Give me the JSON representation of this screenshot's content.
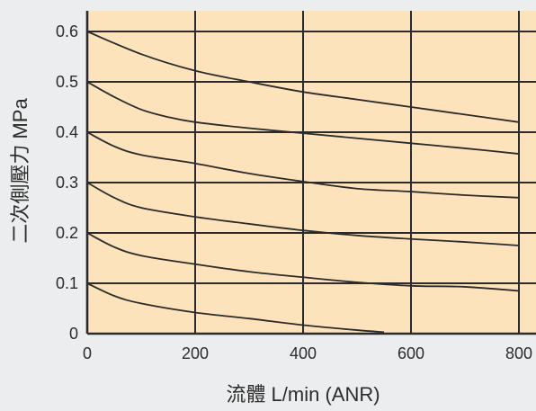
{
  "chart_data": {
    "type": "line",
    "xlabel": "流體 L/min (ANR)",
    "ylabel": "二次側壓力 MPa",
    "xlim": [
      0,
      800
    ],
    "ylim": [
      0,
      0.6
    ],
    "x_ticks": [
      "0",
      "200",
      "400",
      "600",
      "800"
    ],
    "y_ticks": [
      "0",
      "0.1",
      "0.2",
      "0.3",
      "0.4",
      "0.5",
      "0.6"
    ],
    "grid": true,
    "series": [
      {
        "points": [
          [
            0,
            0.6
          ],
          [
            100,
            0.555
          ],
          [
            200,
            0.522
          ],
          [
            300,
            0.5
          ],
          [
            400,
            0.48
          ],
          [
            500,
            0.465
          ],
          [
            600,
            0.45
          ],
          [
            700,
            0.435
          ],
          [
            800,
            0.42
          ]
        ]
      },
      {
        "points": [
          [
            0,
            0.5
          ],
          [
            50,
            0.47
          ],
          [
            100,
            0.445
          ],
          [
            150,
            0.43
          ],
          [
            200,
            0.42
          ],
          [
            300,
            0.408
          ],
          [
            400,
            0.398
          ],
          [
            500,
            0.388
          ],
          [
            600,
            0.378
          ],
          [
            700,
            0.368
          ],
          [
            800,
            0.357
          ]
        ]
      },
      {
        "points": [
          [
            0,
            0.4
          ],
          [
            50,
            0.372
          ],
          [
            100,
            0.355
          ],
          [
            200,
            0.338
          ],
          [
            300,
            0.318
          ],
          [
            400,
            0.302
          ],
          [
            500,
            0.288
          ],
          [
            600,
            0.282
          ],
          [
            700,
            0.275
          ],
          [
            800,
            0.27
          ]
        ]
      },
      {
        "points": [
          [
            0,
            0.3
          ],
          [
            50,
            0.27
          ],
          [
            100,
            0.25
          ],
          [
            200,
            0.232
          ],
          [
            300,
            0.218
          ],
          [
            400,
            0.205
          ],
          [
            500,
            0.195
          ],
          [
            600,
            0.188
          ],
          [
            700,
            0.182
          ],
          [
            800,
            0.175
          ]
        ]
      },
      {
        "points": [
          [
            0,
            0.2
          ],
          [
            50,
            0.172
          ],
          [
            100,
            0.155
          ],
          [
            200,
            0.138
          ],
          [
            300,
            0.123
          ],
          [
            400,
            0.112
          ],
          [
            500,
            0.102
          ],
          [
            600,
            0.095
          ],
          [
            700,
            0.093
          ],
          [
            800,
            0.085
          ]
        ]
      },
      {
        "points": [
          [
            0,
            0.1
          ],
          [
            50,
            0.075
          ],
          [
            100,
            0.06
          ],
          [
            200,
            0.042
          ],
          [
            300,
            0.03
          ],
          [
            400,
            0.017
          ],
          [
            500,
            0.007
          ],
          [
            550,
            0.003
          ]
        ]
      }
    ],
    "colors": {
      "plot_background": "#fde3bc",
      "grid": "#2b2b2b",
      "curve": "#2b2b2b",
      "page_background": "#ecedee"
    }
  }
}
